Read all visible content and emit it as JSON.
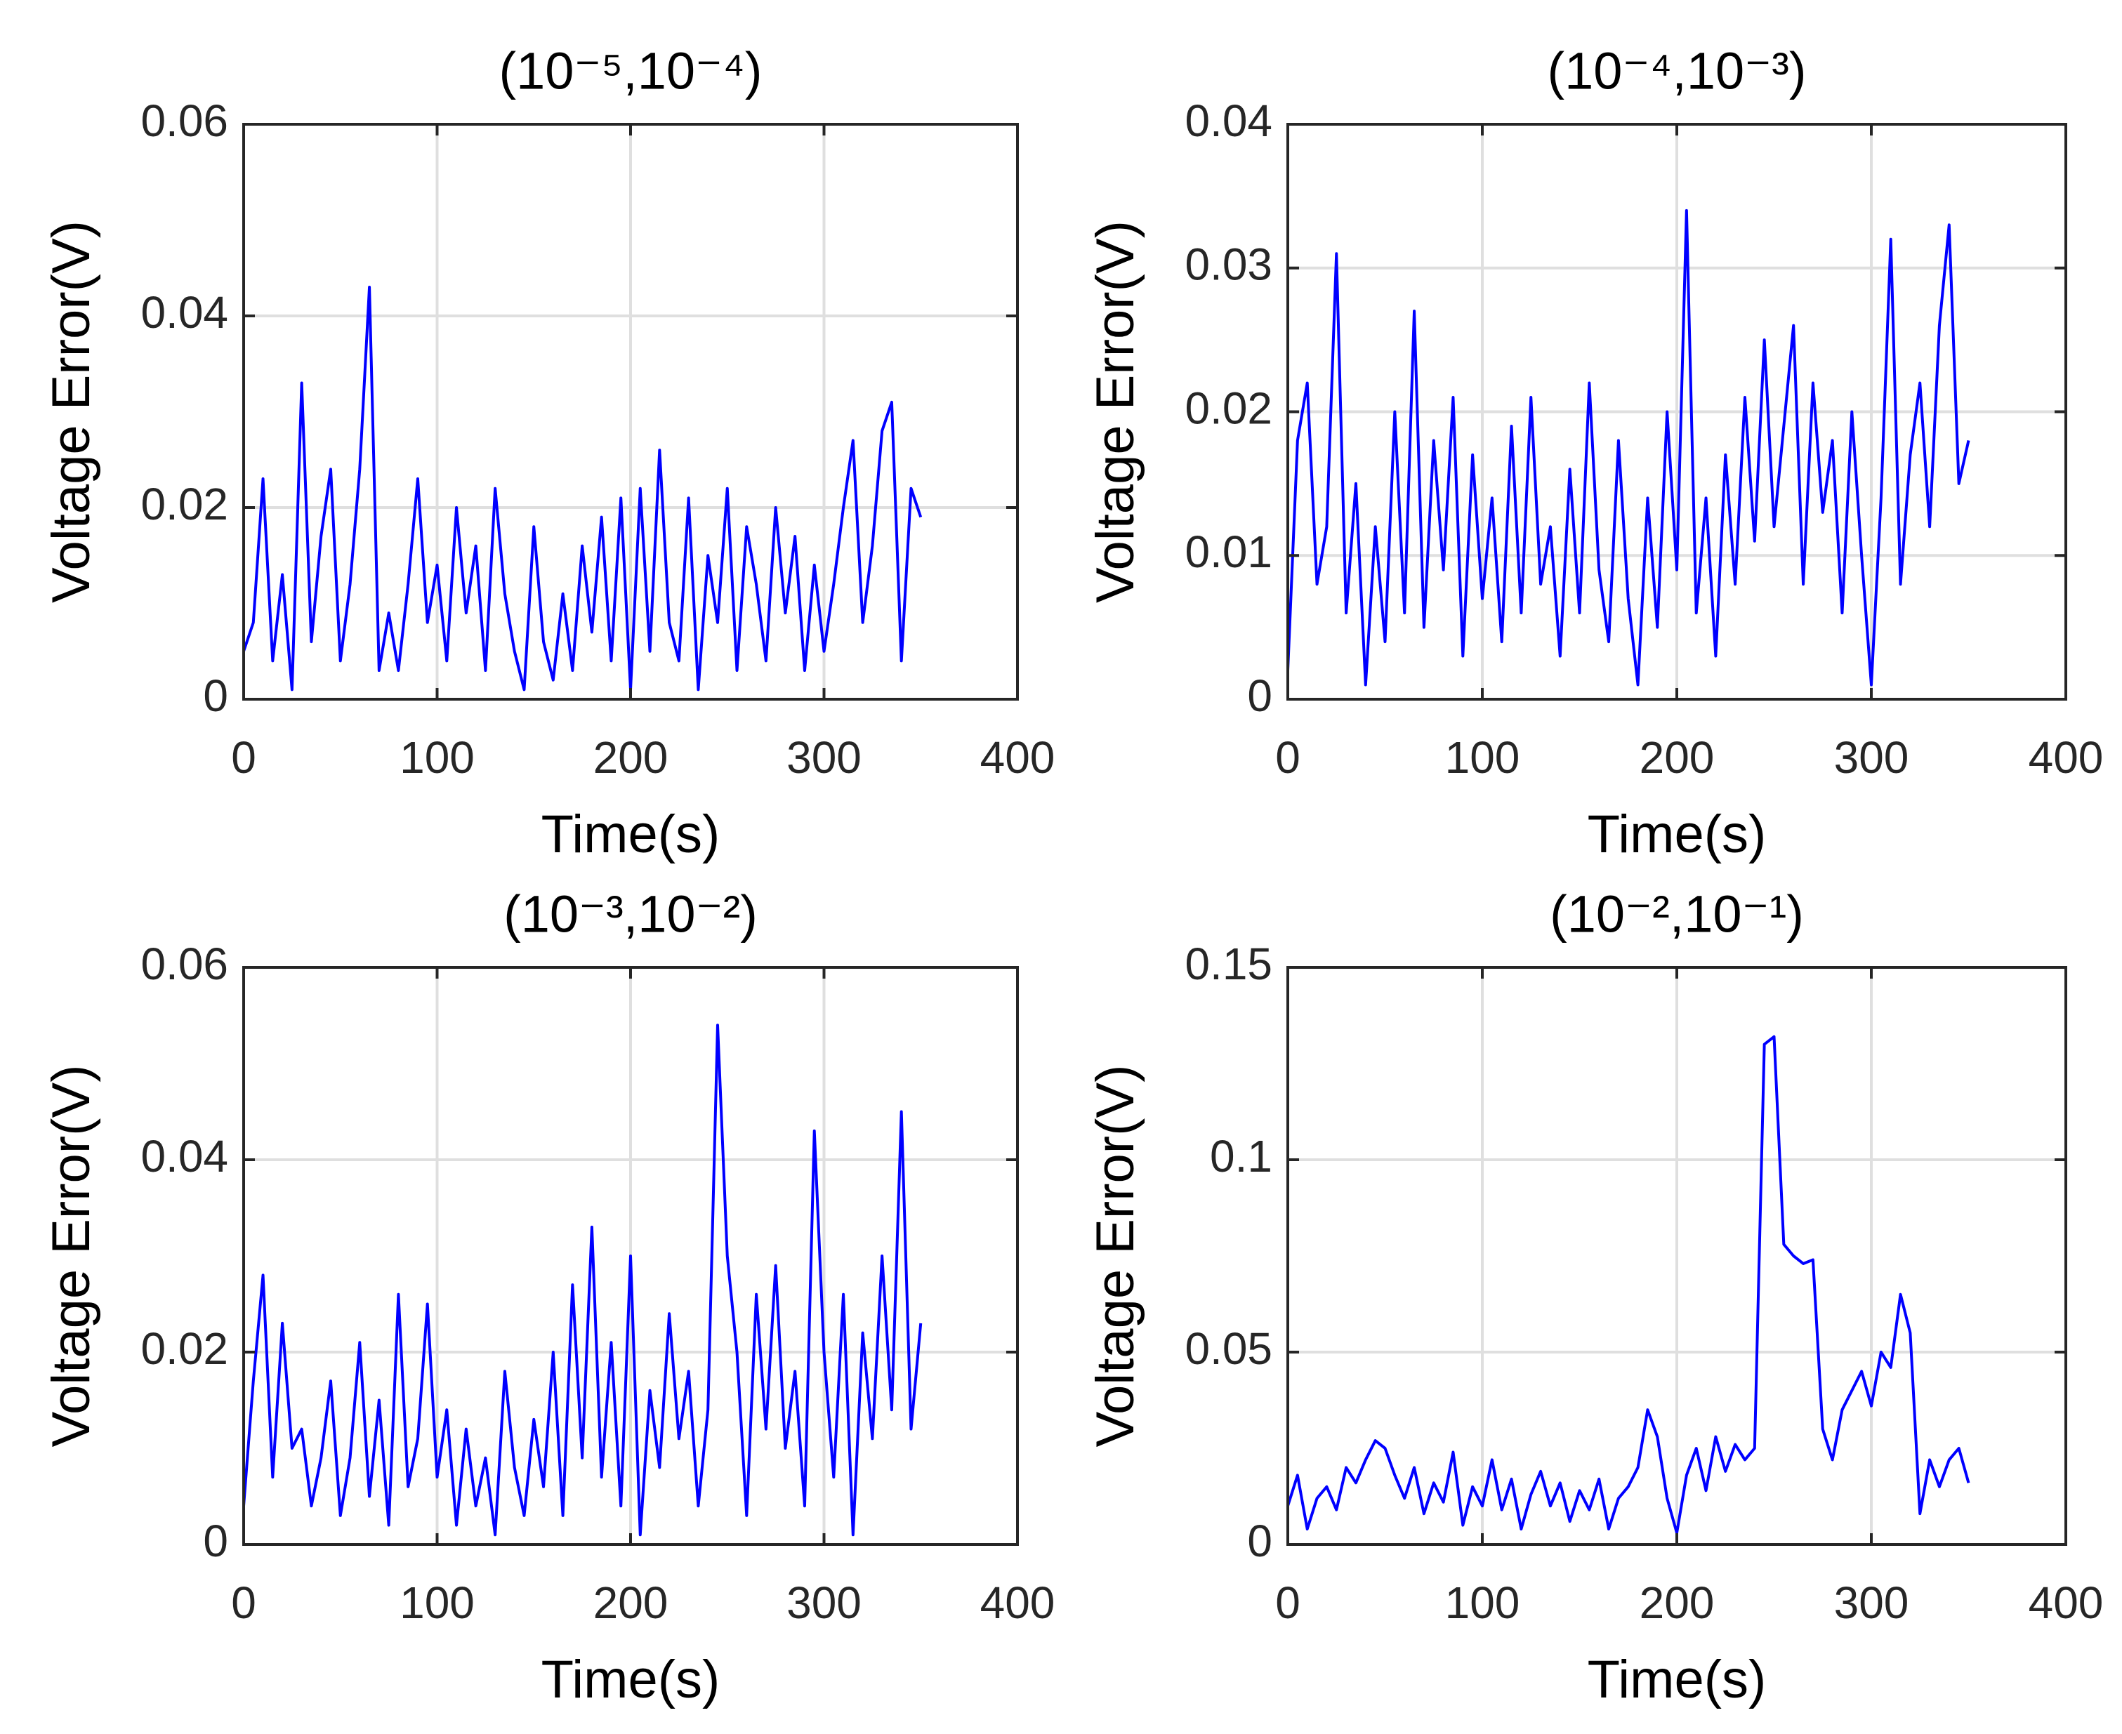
{
  "chart_data": [
    {
      "type": "line",
      "title": "(10⁻⁵,10⁻⁴)",
      "xlabel": "Time(s)",
      "ylabel": "Voltage Error(V)",
      "color": "#0000ff",
      "grid": true,
      "xlim": [
        0,
        400
      ],
      "xticks": [
        0,
        100,
        200,
        300,
        400
      ],
      "ylim": [
        0,
        0.06
      ],
      "yticks": [
        0,
        0.02,
        0.04,
        0.06
      ],
      "x": [
        0,
        5,
        10,
        15,
        20,
        25,
        30,
        35,
        40,
        45,
        50,
        55,
        60,
        65,
        70,
        75,
        80,
        85,
        90,
        95,
        100,
        105,
        110,
        115,
        120,
        125,
        130,
        135,
        140,
        145,
        150,
        155,
        160,
        165,
        170,
        175,
        180,
        185,
        190,
        195,
        200,
        205,
        210,
        215,
        220,
        225,
        230,
        235,
        240,
        245,
        250,
        255,
        260,
        265,
        270,
        275,
        280,
        285,
        290,
        295,
        300,
        305,
        310,
        315,
        320,
        325,
        330,
        335,
        340,
        345,
        350
      ],
      "values": [
        0.005,
        0.008,
        0.023,
        0.004,
        0.013,
        0.001,
        0.033,
        0.006,
        0.017,
        0.024,
        0.004,
        0.012,
        0.024,
        0.043,
        0.003,
        0.009,
        0.003,
        0.012,
        0.023,
        0.008,
        0.014,
        0.004,
        0.02,
        0.009,
        0.016,
        0.003,
        0.022,
        0.011,
        0.005,
        0.001,
        0.018,
        0.006,
        0.002,
        0.011,
        0.003,
        0.016,
        0.007,
        0.019,
        0.004,
        0.021,
        0.001,
        0.022,
        0.005,
        0.026,
        0.008,
        0.004,
        0.021,
        0.001,
        0.015,
        0.008,
        0.022,
        0.003,
        0.018,
        0.012,
        0.004,
        0.02,
        0.009,
        0.017,
        0.003,
        0.014,
        0.005,
        0.012,
        0.02,
        0.027,
        0.008,
        0.016,
        0.028,
        0.031,
        0.004,
        0.022,
        0.019
      ]
    },
    {
      "type": "line",
      "title": "(10⁻⁴,10⁻³)",
      "xlabel": "Time(s)",
      "ylabel": "Voltage Error(V)",
      "color": "#0000ff",
      "grid": true,
      "xlim": [
        0,
        400
      ],
      "xticks": [
        0,
        100,
        200,
        300,
        400
      ],
      "ylim": [
        0,
        0.04
      ],
      "yticks": [
        0,
        0.01,
        0.02,
        0.03,
        0.04
      ],
      "x": [
        0,
        5,
        10,
        15,
        20,
        25,
        30,
        35,
        40,
        45,
        50,
        55,
        60,
        65,
        70,
        75,
        80,
        85,
        90,
        95,
        100,
        105,
        110,
        115,
        120,
        125,
        130,
        135,
        140,
        145,
        150,
        155,
        160,
        165,
        170,
        175,
        180,
        185,
        190,
        195,
        200,
        205,
        210,
        215,
        220,
        225,
        230,
        235,
        240,
        245,
        250,
        255,
        260,
        265,
        270,
        275,
        280,
        285,
        290,
        295,
        300,
        305,
        310,
        315,
        320,
        325,
        330,
        335,
        340,
        345,
        350
      ],
      "values": [
        0.002,
        0.018,
        0.022,
        0.008,
        0.012,
        0.031,
        0.006,
        0.015,
        0.001,
        0.012,
        0.004,
        0.02,
        0.006,
        0.027,
        0.005,
        0.018,
        0.009,
        0.021,
        0.003,
        0.017,
        0.007,
        0.014,
        0.004,
        0.019,
        0.006,
        0.021,
        0.008,
        0.012,
        0.003,
        0.016,
        0.006,
        0.022,
        0.009,
        0.004,
        0.018,
        0.007,
        0.001,
        0.014,
        0.005,
        0.02,
        0.009,
        0.034,
        0.006,
        0.014,
        0.003,
        0.017,
        0.008,
        0.021,
        0.011,
        0.025,
        0.012,
        0.019,
        0.026,
        0.008,
        0.022,
        0.013,
        0.018,
        0.006,
        0.02,
        0.01,
        0.001,
        0.014,
        0.032,
        0.008,
        0.017,
        0.022,
        0.012,
        0.026,
        0.033,
        0.015,
        0.018
      ]
    },
    {
      "type": "line",
      "title": "(10⁻³,10⁻²)",
      "xlabel": "Time(s)",
      "ylabel": "Voltage Error(V)",
      "color": "#0000ff",
      "grid": true,
      "xlim": [
        0,
        400
      ],
      "xticks": [
        0,
        100,
        200,
        300,
        400
      ],
      "ylim": [
        0,
        0.06
      ],
      "yticks": [
        0,
        0.02,
        0.04,
        0.06
      ],
      "x": [
        0,
        5,
        10,
        15,
        20,
        25,
        30,
        35,
        40,
        45,
        50,
        55,
        60,
        65,
        70,
        75,
        80,
        85,
        90,
        95,
        100,
        105,
        110,
        115,
        120,
        125,
        130,
        135,
        140,
        145,
        150,
        155,
        160,
        165,
        170,
        175,
        180,
        185,
        190,
        195,
        200,
        205,
        210,
        215,
        220,
        225,
        230,
        235,
        240,
        245,
        250,
        255,
        260,
        265,
        270,
        275,
        280,
        285,
        290,
        295,
        300,
        305,
        310,
        315,
        320,
        325,
        330,
        335,
        340,
        345,
        350
      ],
      "values": [
        0.004,
        0.017,
        0.028,
        0.007,
        0.023,
        0.01,
        0.012,
        0.004,
        0.009,
        0.017,
        0.003,
        0.009,
        0.021,
        0.005,
        0.015,
        0.002,
        0.026,
        0.006,
        0.011,
        0.025,
        0.007,
        0.014,
        0.002,
        0.012,
        0.004,
        0.009,
        0.001,
        0.018,
        0.008,
        0.003,
        0.013,
        0.006,
        0.02,
        0.003,
        0.027,
        0.009,
        0.033,
        0.007,
        0.021,
        0.004,
        0.03,
        0.001,
        0.016,
        0.008,
        0.024,
        0.011,
        0.018,
        0.004,
        0.014,
        0.054,
        0.03,
        0.02,
        0.003,
        0.026,
        0.012,
        0.029,
        0.01,
        0.018,
        0.004,
        0.043,
        0.02,
        0.007,
        0.026,
        0.001,
        0.022,
        0.011,
        0.03,
        0.014,
        0.045,
        0.012,
        0.023
      ]
    },
    {
      "type": "line",
      "title": "(10⁻²,10⁻¹)",
      "xlabel": "Time(s)",
      "ylabel": "Voltage Error(V)",
      "color": "#0000ff",
      "grid": true,
      "xlim": [
        0,
        400
      ],
      "xticks": [
        0,
        100,
        200,
        300,
        400
      ],
      "ylim": [
        0,
        0.15
      ],
      "yticks": [
        0,
        0.05,
        0.1,
        0.15
      ],
      "x": [
        0,
        5,
        10,
        15,
        20,
        25,
        30,
        35,
        40,
        45,
        50,
        55,
        60,
        65,
        70,
        75,
        80,
        85,
        90,
        95,
        100,
        105,
        110,
        115,
        120,
        125,
        130,
        135,
        140,
        145,
        150,
        155,
        160,
        165,
        170,
        175,
        180,
        185,
        190,
        195,
        200,
        205,
        210,
        215,
        220,
        225,
        230,
        235,
        240,
        245,
        250,
        255,
        260,
        265,
        270,
        275,
        280,
        285,
        290,
        295,
        300,
        305,
        310,
        315,
        320,
        325,
        330,
        335,
        340,
        345,
        350
      ],
      "values": [
        0.01,
        0.018,
        0.004,
        0.012,
        0.015,
        0.009,
        0.02,
        0.016,
        0.022,
        0.027,
        0.025,
        0.018,
        0.012,
        0.02,
        0.008,
        0.016,
        0.011,
        0.024,
        0.005,
        0.015,
        0.01,
        0.022,
        0.009,
        0.017,
        0.004,
        0.013,
        0.019,
        0.01,
        0.016,
        0.006,
        0.014,
        0.009,
        0.017,
        0.004,
        0.012,
        0.015,
        0.02,
        0.035,
        0.028,
        0.012,
        0.003,
        0.018,
        0.025,
        0.014,
        0.028,
        0.019,
        0.026,
        0.022,
        0.025,
        0.13,
        0.132,
        0.078,
        0.075,
        0.073,
        0.074,
        0.03,
        0.022,
        0.035,
        0.04,
        0.045,
        0.036,
        0.05,
        0.046,
        0.065,
        0.055,
        0.008,
        0.022,
        0.015,
        0.022,
        0.025,
        0.016
      ]
    }
  ]
}
